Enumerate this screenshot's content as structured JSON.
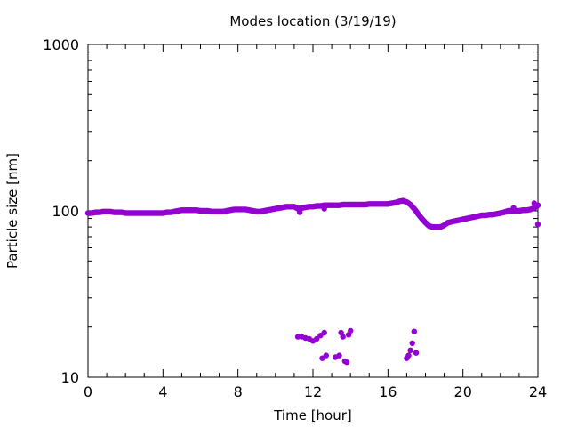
{
  "chart_data": {
    "type": "scatter",
    "title": "Modes location (3/19/19)",
    "xlabel": "Time [hour]",
    "ylabel": "Particle size [nm]",
    "xlim": [
      0,
      24
    ],
    "ylim": [
      10,
      1000
    ],
    "yscale": "log",
    "xticks": [
      "0",
      "4",
      "8",
      "12",
      "16",
      "20",
      "24"
    ],
    "yticks": [
      "10",
      "100",
      "1000"
    ],
    "grid": false,
    "legend": false,
    "marker_color": "#9400d3",
    "series": [
      {
        "x": [
          0.0,
          0.2,
          0.4,
          0.6,
          0.8,
          1.0,
          1.2,
          1.4,
          1.6,
          1.8,
          2.0,
          2.2,
          2.4,
          2.6,
          2.8,
          3.0,
          3.2,
          3.4,
          3.6,
          3.8,
          4.0,
          4.2,
          4.4,
          4.6,
          4.8,
          5.0,
          5.2,
          5.4,
          5.6,
          5.8,
          6.0,
          6.2,
          6.4,
          6.6,
          6.8,
          7.0,
          7.2,
          7.4,
          7.6,
          7.8,
          8.0,
          8.2,
          8.4,
          8.6,
          8.8,
          9.0,
          9.2,
          9.4,
          9.6,
          9.8,
          10.0,
          10.2,
          10.4,
          10.6,
          10.8,
          11.0,
          11.2,
          11.4,
          11.6,
          11.8,
          12.0,
          12.2,
          12.4,
          12.6,
          12.8,
          13.0,
          13.2,
          13.4,
          13.6,
          13.8,
          14.0,
          14.2,
          14.4,
          14.6,
          14.8,
          15.0,
          15.2,
          15.4,
          15.6,
          15.8,
          16.0,
          16.2,
          16.4,
          16.6,
          16.8,
          17.0,
          17.2,
          17.4,
          17.6,
          17.8,
          18.0,
          18.2,
          18.4,
          18.6,
          18.8,
          19.0,
          19.2,
          19.4,
          19.6,
          19.8,
          20.0,
          20.2,
          20.4,
          20.6,
          20.8,
          21.0,
          21.2,
          21.4,
          21.6,
          21.8,
          22.0,
          22.2,
          22.4,
          22.6,
          22.8,
          23.0,
          23.2,
          23.4,
          23.6,
          23.8,
          24.0
        ],
        "y": [
          97,
          97,
          98,
          98,
          99,
          99,
          99,
          98,
          98,
          98,
          97,
          97,
          97,
          97,
          97,
          97,
          97,
          97,
          97,
          97,
          97,
          98,
          98,
          99,
          100,
          101,
          101,
          101,
          101,
          101,
          100,
          100,
          100,
          99,
          99,
          99,
          99,
          100,
          101,
          102,
          102,
          102,
          102,
          101,
          100,
          99,
          99,
          100,
          101,
          102,
          103,
          104,
          105,
          106,
          106,
          106,
          103,
          104,
          105,
          106,
          106,
          107,
          107,
          108,
          108,
          108,
          108,
          108,
          109,
          109,
          109,
          109,
          109,
          109,
          109,
          110,
          110,
          110,
          110,
          110,
          110,
          111,
          112,
          114,
          115,
          113,
          109,
          103,
          96,
          90,
          85,
          81,
          80,
          80,
          80,
          82,
          85,
          86,
          87,
          88,
          89,
          90,
          91,
          92,
          93,
          94,
          94,
          95,
          95,
          96,
          97,
          98,
          100,
          100,
          100,
          100,
          101,
          101,
          102,
          104,
          108
        ],
        "extra_x": [
          11.3,
          12.6,
          22.7,
          23.8,
          24.0
        ],
        "extra_y": [
          98,
          103,
          104,
          111,
          83
        ]
      },
      {
        "x": [
          11.2,
          11.4,
          11.6,
          11.8,
          12.0,
          12.2,
          12.4,
          12.6,
          12.5,
          12.7,
          13.2,
          13.4,
          13.5,
          13.6,
          13.7,
          13.8,
          13.9,
          14.0,
          17.0,
          17.1,
          17.2,
          17.3,
          17.4,
          17.5
        ],
        "y": [
          17.5,
          17.5,
          17.2,
          17.0,
          16.5,
          17.0,
          17.8,
          18.5,
          13.0,
          13.5,
          13.2,
          13.5,
          18.5,
          17.5,
          12.5,
          12.3,
          18.0,
          19.0,
          13.0,
          13.5,
          14.5,
          16.0,
          18.8,
          14.0
        ]
      }
    ]
  }
}
